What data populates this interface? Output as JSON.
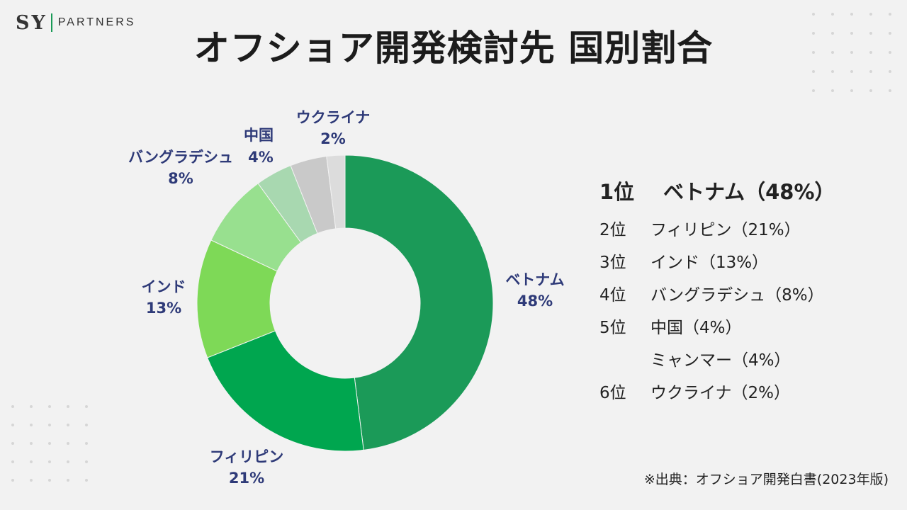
{
  "logo": {
    "sy": "SY",
    "partners": "PARTNERS"
  },
  "title": "オフショア開発検討先 国別割合",
  "chart_data": {
    "type": "donut",
    "series": [
      {
        "name": "ベトナム",
        "value": 48,
        "label": "48%",
        "color": "#1b9a58"
      },
      {
        "name": "フィリピン",
        "value": 21,
        "label": "21%",
        "color": "#00a64f"
      },
      {
        "name": "インド",
        "value": 13,
        "label": "13%",
        "color": "#7ed957"
      },
      {
        "name": "バングラデシュ",
        "value": 8,
        "label": "8%",
        "color": "#98e08f"
      },
      {
        "name": "中国",
        "value": 4,
        "label": "4%",
        "color": "#a8d8b0"
      },
      {
        "name": "",
        "value": 4,
        "label": "",
        "color": "#c9c9c9"
      },
      {
        "name": "ウクライナ",
        "value": 2,
        "label": "2%",
        "color": "#dcdcdc"
      }
    ]
  },
  "ranking": [
    {
      "rank": "1位",
      "text": "ベトナム（48%）"
    },
    {
      "rank": "2位",
      "text": "フィリピン（21%）"
    },
    {
      "rank": "3位",
      "text": "インド（13%）"
    },
    {
      "rank": "4位",
      "text": "バングラデシュ（8%）"
    },
    {
      "rank": "5位",
      "text": "中国（4%）"
    },
    {
      "rank": "",
      "text": "ミャンマー（4%）"
    },
    {
      "rank": "6位",
      "text": "ウクライナ（2%）"
    }
  ],
  "source": "※出典：オフショア開発白書(2023年版)"
}
